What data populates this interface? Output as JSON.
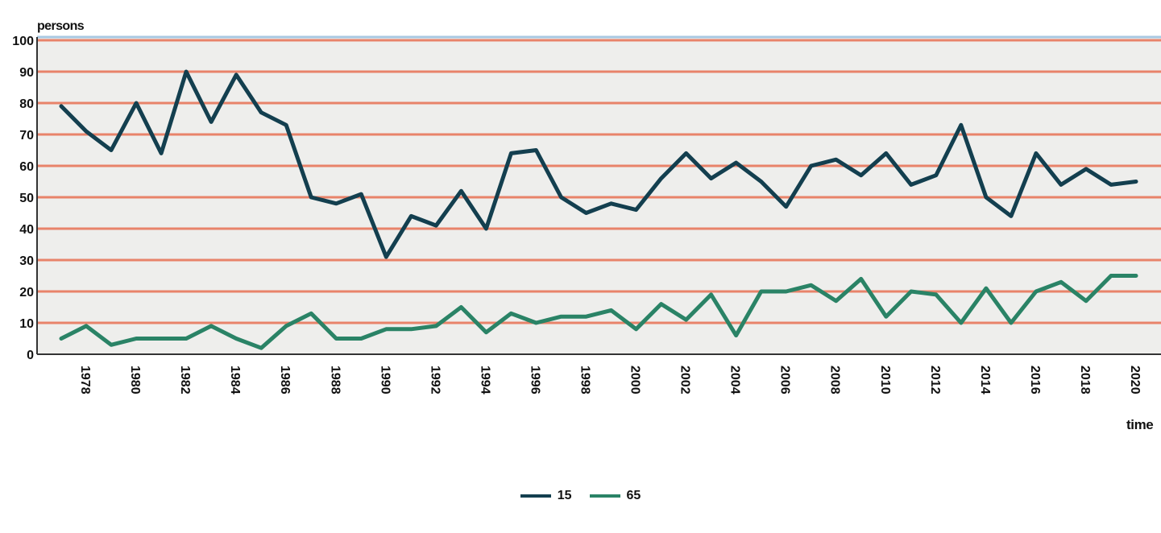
{
  "chart_data": {
    "type": "line",
    "ylabel": "persons",
    "xlabel": "time",
    "ylim": [
      0,
      100
    ],
    "yticks": [
      "0",
      "10",
      "20",
      "30",
      "40",
      "50",
      "60",
      "70",
      "80",
      "90",
      "100"
    ],
    "xticks": [
      "1978",
      "1980",
      "1982",
      "1984",
      "1986",
      "1988",
      "1990",
      "1992",
      "1994",
      "1996",
      "1998",
      "2000",
      "2002",
      "2004",
      "2006",
      "2008",
      "2010",
      "2012",
      "2014",
      "2016",
      "2018",
      "2020"
    ],
    "grid": true,
    "legend_position": "bottom-center",
    "x": [
      1977,
      1978,
      1979,
      1980,
      1981,
      1982,
      1983,
      1984,
      1985,
      1986,
      1987,
      1988,
      1989,
      1990,
      1991,
      1992,
      1993,
      1994,
      1995,
      1996,
      1997,
      1998,
      1999,
      2000,
      2001,
      2002,
      2003,
      2004,
      2005,
      2006,
      2007,
      2008,
      2009,
      2010,
      2011,
      2012,
      2013,
      2014,
      2015,
      2016,
      2017,
      2018,
      2019,
      2020
    ],
    "series": [
      {
        "name": "15",
        "color": "#133f4f",
        "values": [
          79,
          71,
          65,
          80,
          64,
          90,
          74,
          89,
          77,
          73,
          50,
          48,
          51,
          31,
          44,
          41,
          52,
          40,
          64,
          65,
          50,
          45,
          48,
          46,
          56,
          64,
          56,
          61,
          55,
          47,
          60,
          62,
          57,
          64,
          54,
          57,
          73,
          50,
          44,
          64,
          54,
          59,
          54,
          55
        ]
      },
      {
        "name": "65",
        "color": "#2a8366",
        "values": [
          5,
          9,
          3,
          5,
          5,
          5,
          9,
          5,
          2,
          9,
          13,
          5,
          5,
          8,
          8,
          9,
          15,
          7,
          13,
          10,
          12,
          12,
          14,
          8,
          16,
          11,
          19,
          6,
          20,
          20,
          22,
          17,
          24,
          12,
          20,
          19,
          10,
          21,
          10,
          20,
          23,
          17,
          25,
          25
        ]
      }
    ],
    "colors": {
      "plot_background": "#eeeeec",
      "gridline": "#e8836a",
      "axis": "#333333",
      "top_border": "#a9c8e2"
    }
  }
}
